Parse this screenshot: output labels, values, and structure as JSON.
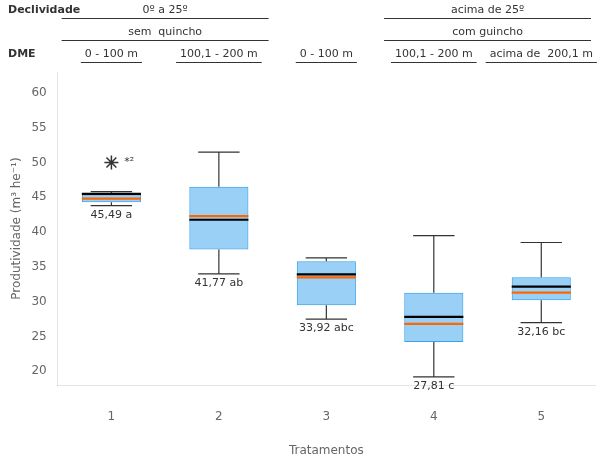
{
  "chart_data": {
    "type": "box",
    "xlabel": "Tratamentos",
    "ylabel": "Produtividade (m³ he⁻¹)",
    "categories": [
      "1",
      "2",
      "3",
      "4",
      "5"
    ],
    "boxes": [
      {
        "whisker_low": 43.8,
        "q1": 44.3,
        "median": 44.8,
        "q3": 45.4,
        "whisker_high": 45.8,
        "mean": 45.49,
        "mean_label": "45,49 a",
        "outliers": [
          50.0
        ],
        "outlier_label": "*²"
      },
      {
        "whisker_low": 34.0,
        "q1": 37.5,
        "median": 42.3,
        "q3": 46.5,
        "whisker_high": 51.5,
        "mean": 41.77,
        "mean_label": "41,77 ab",
        "outliers": []
      },
      {
        "whisker_low": 27.5,
        "q1": 29.5,
        "median": 33.5,
        "q3": 35.8,
        "whisker_high": 36.3,
        "mean": 33.92,
        "mean_label": "33,92 abc",
        "outliers": []
      },
      {
        "whisker_low": 19.2,
        "q1": 24.2,
        "median": 26.8,
        "q3": 31.3,
        "whisker_high": 39.5,
        "mean": 27.81,
        "mean_label": "27,81 c",
        "outliers": []
      },
      {
        "whisker_low": 27.0,
        "q1": 30.2,
        "median": 31.3,
        "q3": 33.5,
        "whisker_high": 38.5,
        "mean": 32.16,
        "mean_label": "32,16 bc",
        "outliers": []
      }
    ],
    "median_color": "#ff6600",
    "mean_color": "#000000",
    "ylim": [
      18,
      63
    ],
    "yticks": [
      20,
      25,
      30,
      35,
      40,
      45,
      50,
      55,
      60
    ],
    "grid": false,
    "headers": [
      {
        "label": "Declividade",
        "groups": [
          {
            "text": "0º a 25º",
            "categories": [
              "1",
              "2"
            ]
          },
          {
            "text": "acima de 25º",
            "categories": [
              "4",
              "5"
            ]
          }
        ]
      },
      {
        "groups": [
          {
            "text": "sem  quincho",
            "categories": [
              "1",
              "2"
            ]
          },
          {
            "text": "com guincho",
            "categories": [
              "4",
              "5"
            ]
          }
        ]
      },
      {
        "label": "DME",
        "groups": [
          {
            "text": "0 - 100 m",
            "categories": [
              "1"
            ]
          },
          {
            "text": "100,1 - 200 m",
            "categories": [
              "2"
            ]
          },
          {
            "text": "0 - 100 m",
            "categories": [
              "3"
            ]
          },
          {
            "text": "100,1 - 200 m",
            "categories": [
              "4"
            ]
          },
          {
            "text": "acima de  200,1 m",
            "categories": [
              "5"
            ]
          }
        ]
      }
    ]
  }
}
